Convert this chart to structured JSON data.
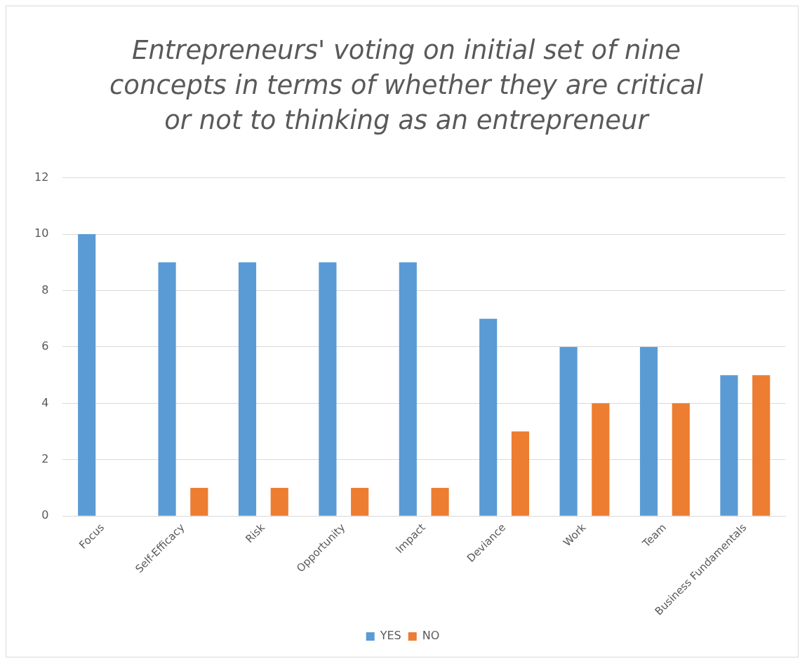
{
  "chart_data": {
    "type": "bar",
    "title": "Entrepreneurs' voting on initial set of nine concepts in terms of whether they are critical or not to thinking as an entrepreneur",
    "categories": [
      "Focus",
      "Self-Efficacy",
      "Risk",
      "Opportunity",
      "Impact",
      "Deviance",
      "Work",
      "Team",
      "Business Fundamentals"
    ],
    "series": [
      {
        "name": "YES",
        "color": "#5b9bd5",
        "values": [
          10,
          9,
          9,
          9,
          9,
          7,
          6,
          6,
          5
        ]
      },
      {
        "name": "NO",
        "color": "#ed7d31",
        "values": [
          0,
          1,
          1,
          1,
          1,
          3,
          4,
          4,
          5
        ]
      }
    ],
    "ylim": [
      0,
      12
    ],
    "yticks": [
      0,
      2,
      4,
      6,
      8,
      10,
      12
    ],
    "grid": "y",
    "legend": "bottom"
  }
}
